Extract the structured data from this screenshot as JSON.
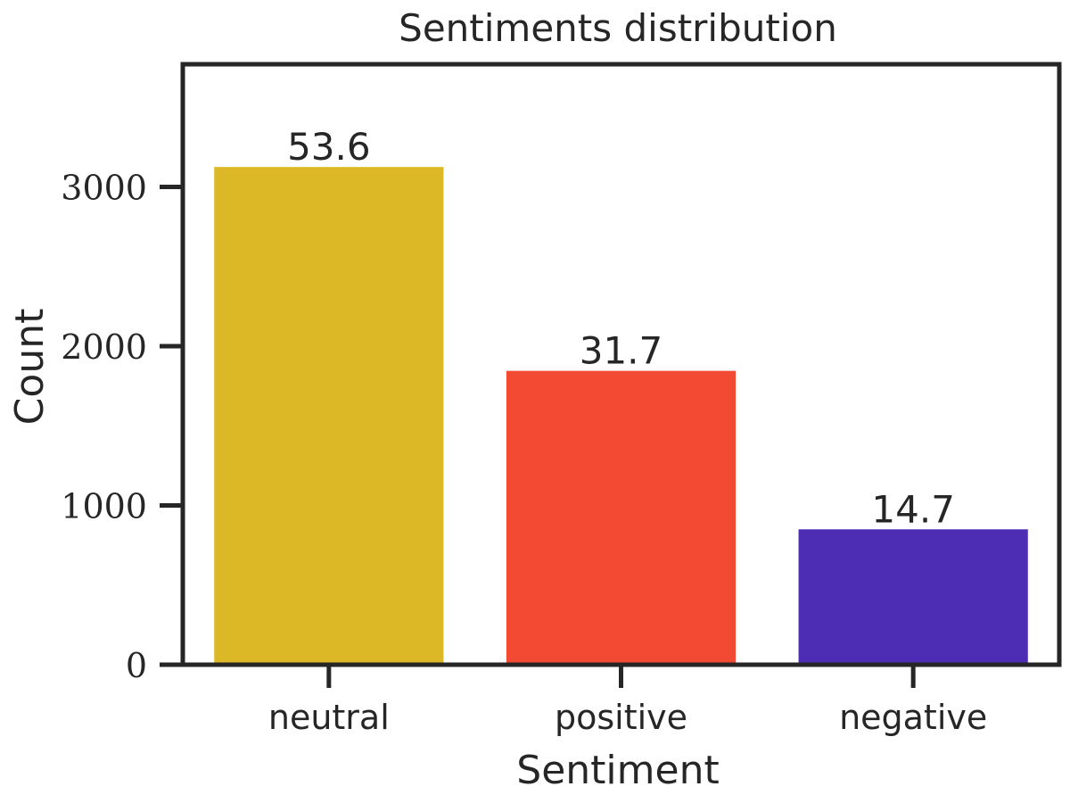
{
  "chart_data": {
    "type": "bar",
    "title": "Sentiments distribution",
    "xlabel": "Sentiment",
    "ylabel": "Count",
    "categories": [
      "neutral",
      "positive",
      "negative"
    ],
    "values": [
      3125,
      1845,
      850
    ],
    "bar_labels": [
      "53.6",
      "31.7",
      "14.7"
    ],
    "colors": [
      "#DDB826",
      "#F24A33",
      "#4E2DB5"
    ],
    "ylim": [
      0,
      3770
    ],
    "yticks": [
      0,
      1000,
      2000,
      3000
    ],
    "grid": false,
    "legend": "none"
  }
}
